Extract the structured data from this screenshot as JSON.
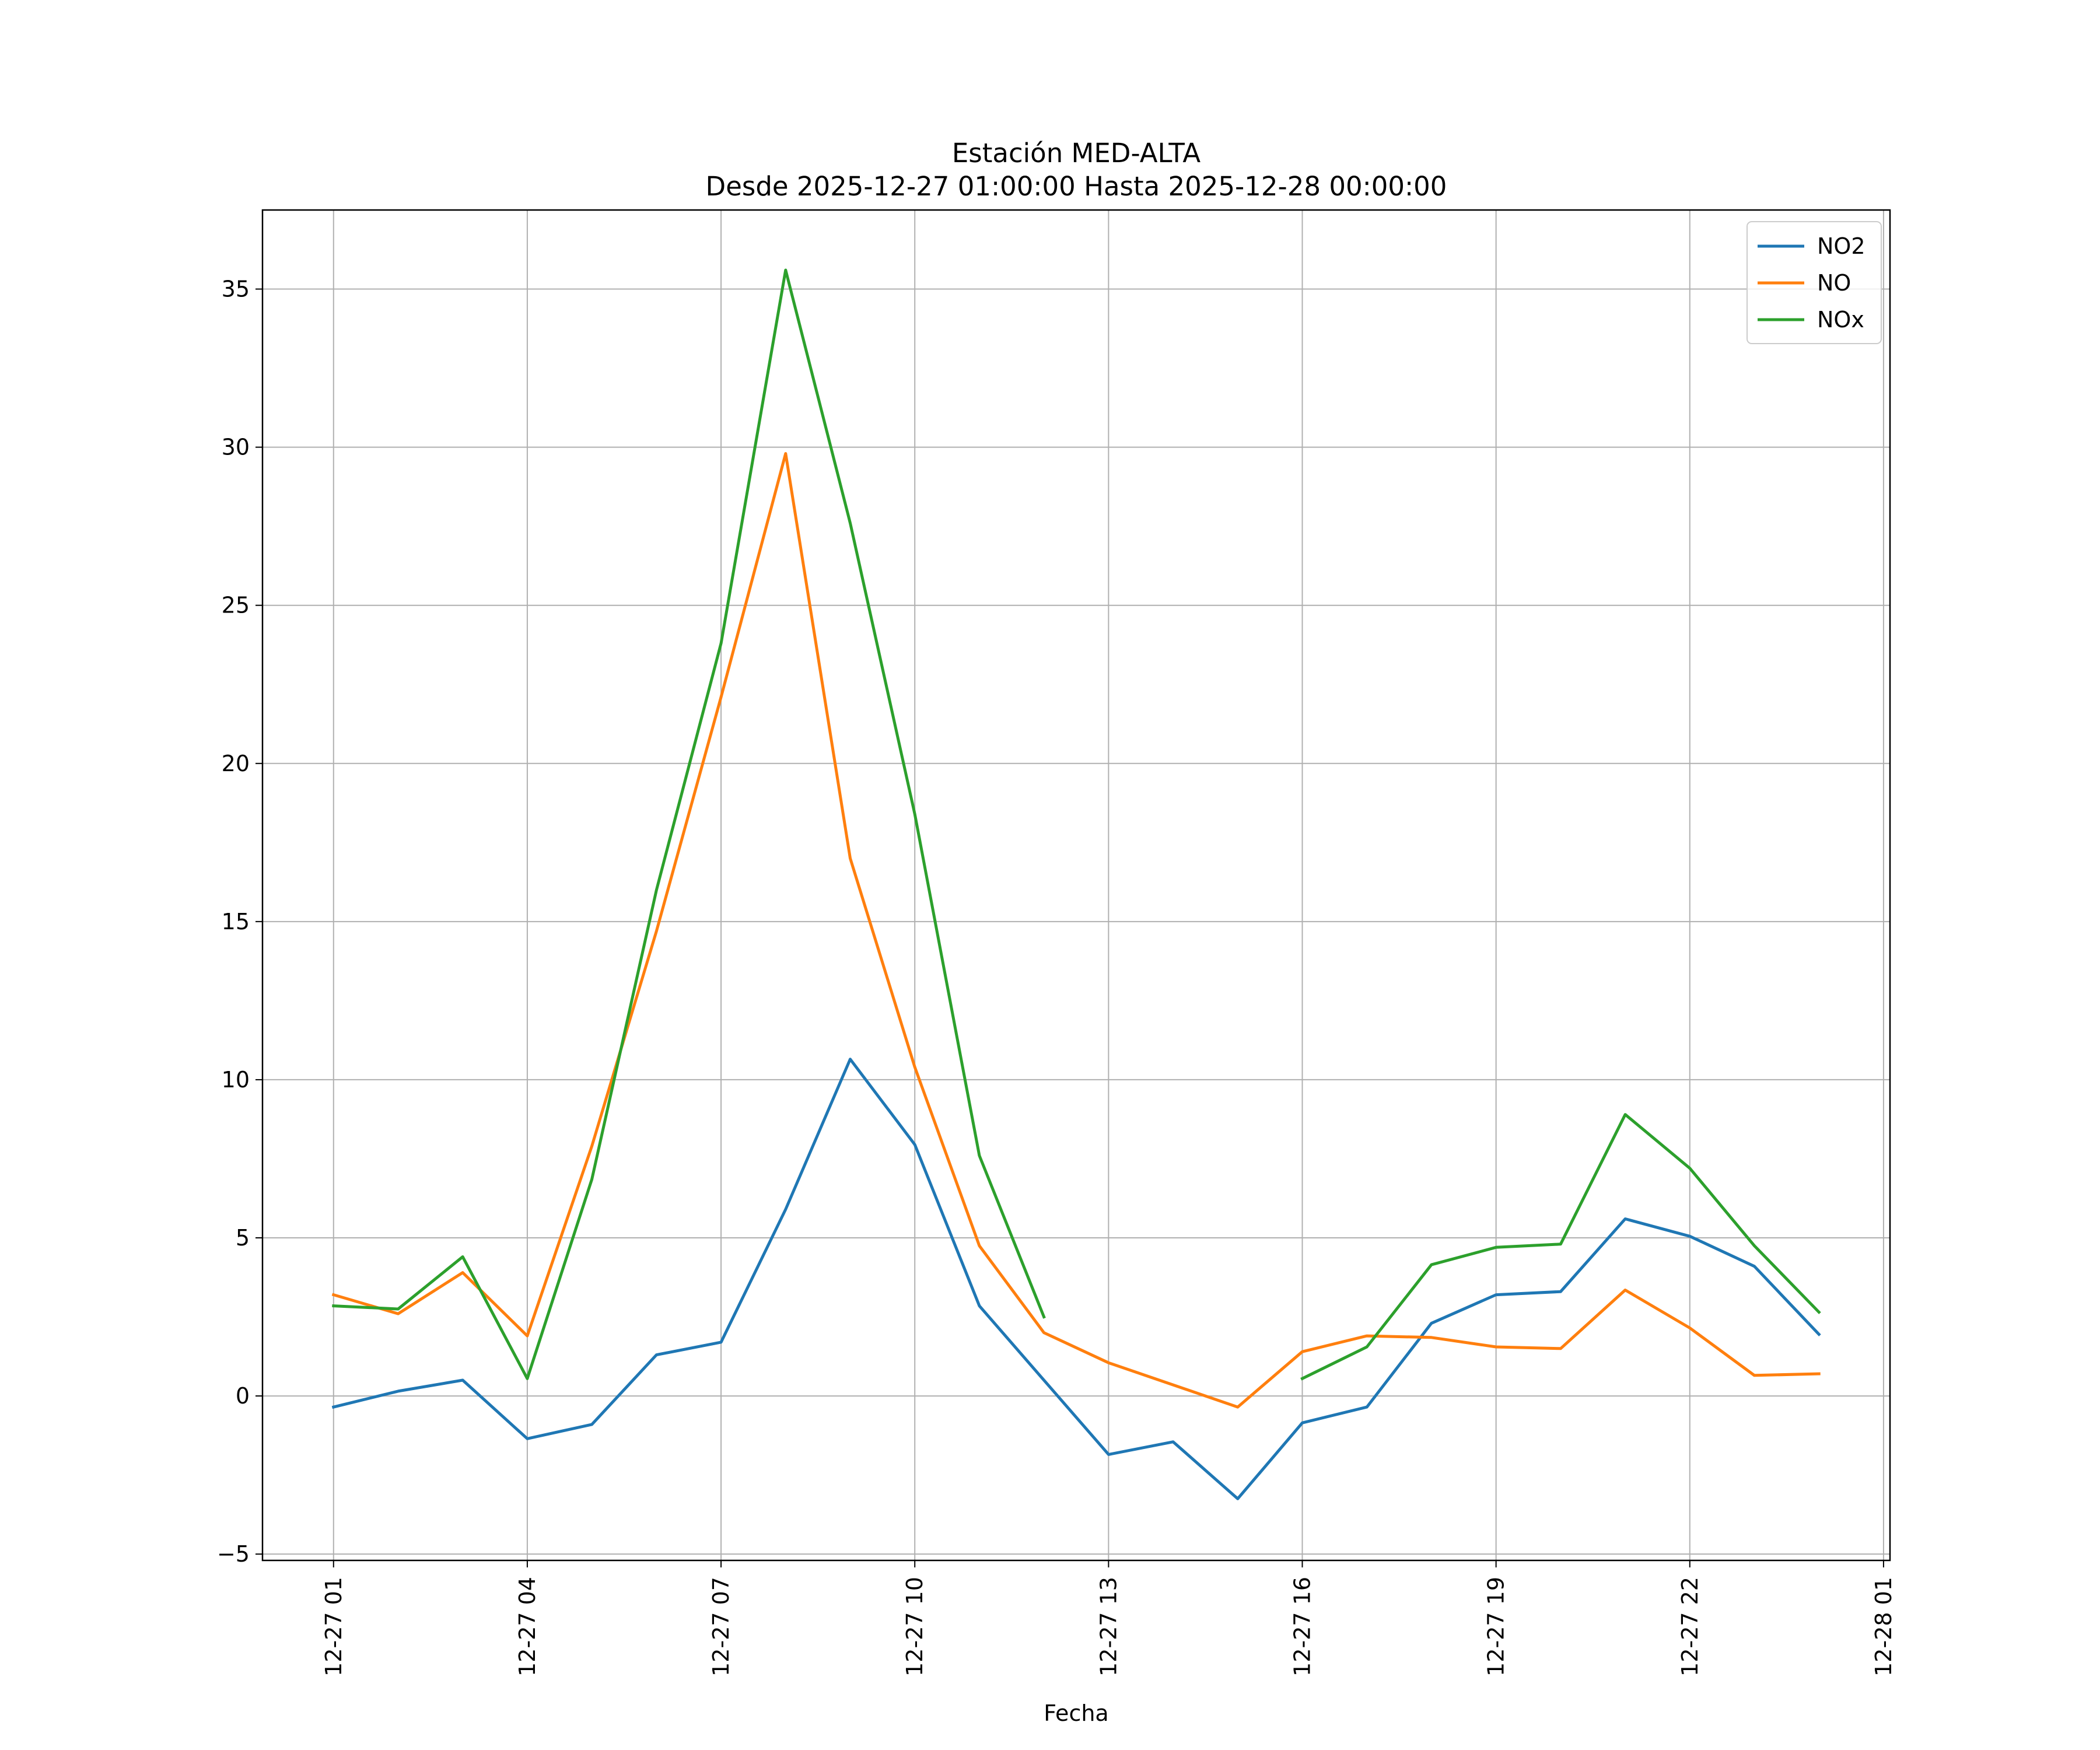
{
  "chart_data": {
    "type": "line",
    "title": "Estación MED-ALTA",
    "subtitle": "Desde 2025-12-27 01:00:00 Hasta 2025-12-28 00:00:00",
    "xlabel": "Fecha",
    "ylabel": "",
    "x": [
      1,
      2,
      3,
      4,
      5,
      6,
      7,
      8,
      9,
      10,
      11,
      12,
      13,
      14,
      15,
      16,
      17,
      18,
      19,
      20,
      21,
      22,
      23,
      24
    ],
    "xlim": [
      -0.1,
      25.1
    ],
    "ylim": [
      -5.2,
      37.5
    ],
    "x_ticks": [
      {
        "value": 1,
        "label": "12-27 01"
      },
      {
        "value": 4,
        "label": "12-27 04"
      },
      {
        "value": 7,
        "label": "12-27 07"
      },
      {
        "value": 10,
        "label": "12-27 10"
      },
      {
        "value": 13,
        "label": "12-27 13"
      },
      {
        "value": 16,
        "label": "12-27 16"
      },
      {
        "value": 19,
        "label": "12-27 19"
      },
      {
        "value": 22,
        "label": "12-27 22"
      },
      {
        "value": 25,
        "label": "12-28 01"
      }
    ],
    "y_ticks": [
      {
        "value": -5,
        "label": "−5"
      },
      {
        "value": 0,
        "label": "0"
      },
      {
        "value": 5,
        "label": "5"
      },
      {
        "value": 10,
        "label": "10"
      },
      {
        "value": 15,
        "label": "15"
      },
      {
        "value": 20,
        "label": "20"
      },
      {
        "value": 25,
        "label": "25"
      },
      {
        "value": 30,
        "label": "30"
      },
      {
        "value": 35,
        "label": "35"
      }
    ],
    "grid": true,
    "legend_position": "top-right",
    "series": [
      {
        "name": "NO2",
        "color": "#1f77b4",
        "values": [
          -0.35,
          0.15,
          0.5,
          -1.35,
          -0.9,
          1.3,
          1.7,
          5.9,
          10.65,
          7.95,
          2.85,
          0.5,
          -1.85,
          -1.45,
          -3.25,
          -0.85,
          -0.35,
          2.3,
          3.2,
          3.3,
          5.6,
          5.05,
          4.1,
          1.95
        ]
      },
      {
        "name": "NO",
        "color": "#ff7f0e",
        "values": [
          3.2,
          2.6,
          3.9,
          1.9,
          7.9,
          14.7,
          22.1,
          29.8,
          17.0,
          10.4,
          4.75,
          2.0,
          1.05,
          0.35,
          -0.35,
          1.4,
          1.9,
          1.85,
          1.55,
          1.5,
          3.35,
          2.15,
          0.65,
          0.7
        ]
      },
      {
        "name": "NOx",
        "color": "#2ca02c",
        "values": [
          2.85,
          2.75,
          4.4,
          0.55,
          6.85,
          16.0,
          23.8,
          35.6,
          27.6,
          18.4,
          7.6,
          2.5,
          null,
          null,
          null,
          0.55,
          1.55,
          4.15,
          4.7,
          4.8,
          8.9,
          7.2,
          4.75,
          2.65
        ]
      }
    ]
  }
}
